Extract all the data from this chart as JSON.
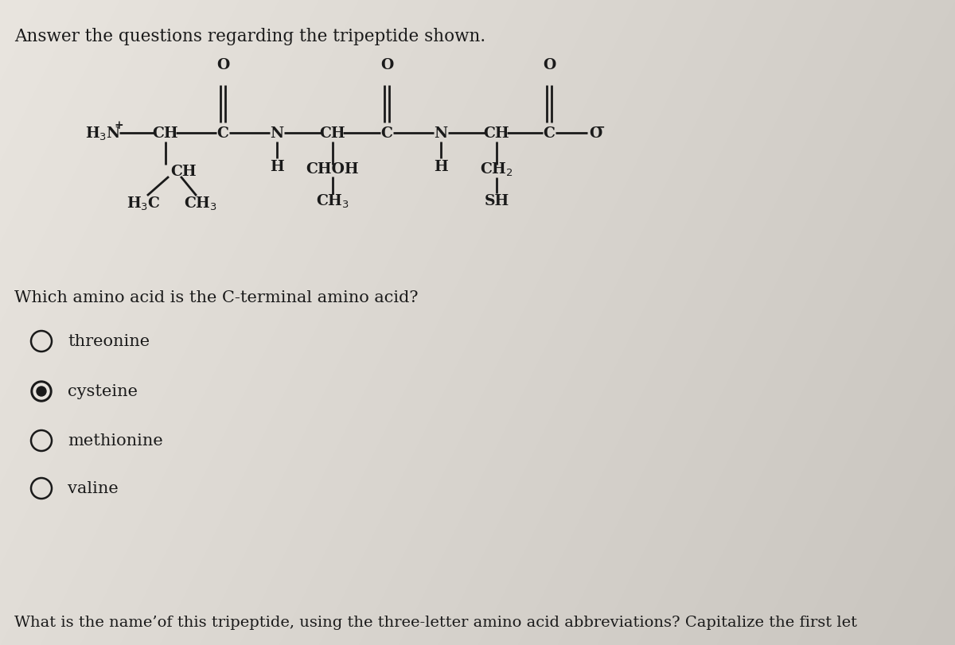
{
  "title": "Answer the questions regarding the tripeptide shown.",
  "title_fontsize": 15.5,
  "background_color": "#e8e4de",
  "text_color": "#1a1a1a",
  "question1": "Which amino acid is the C-terminal amino acid?",
  "options": [
    "threonine",
    "cysteine",
    "methionine",
    "valine"
  ],
  "selected_option": 1,
  "question2": "What is the name’of this tripeptide, using the three-letter amino acid abbreviations? Capitalize the first let",
  "font_family": "serif",
  "struct_font_size": 13.5,
  "option_font_size": 15,
  "q_font_size": 15
}
